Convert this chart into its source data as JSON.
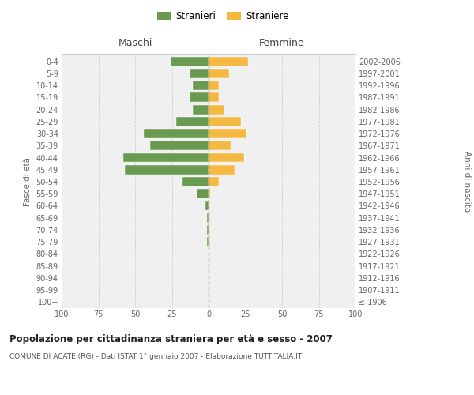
{
  "age_groups": [
    "100+",
    "95-99",
    "90-94",
    "85-89",
    "80-84",
    "75-79",
    "70-74",
    "65-69",
    "60-64",
    "55-59",
    "50-54",
    "45-49",
    "40-44",
    "35-39",
    "30-34",
    "25-29",
    "20-24",
    "15-19",
    "10-14",
    "5-9",
    "0-4"
  ],
  "birth_years": [
    "≤ 1906",
    "1907-1911",
    "1912-1916",
    "1917-1921",
    "1922-1926",
    "1927-1931",
    "1932-1936",
    "1937-1941",
    "1942-1946",
    "1947-1951",
    "1952-1956",
    "1957-1961",
    "1962-1966",
    "1967-1971",
    "1972-1976",
    "1977-1981",
    "1982-1986",
    "1987-1991",
    "1992-1996",
    "1997-2001",
    "2002-2006"
  ],
  "males": [
    0,
    0,
    0,
    0,
    0,
    1,
    1,
    1,
    2,
    8,
    18,
    57,
    58,
    40,
    44,
    22,
    11,
    13,
    11,
    13,
    26
  ],
  "females": [
    0,
    0,
    0,
    0,
    0,
    0,
    0,
    0,
    0,
    1,
    7,
    18,
    24,
    15,
    26,
    22,
    11,
    7,
    7,
    14,
    27
  ],
  "male_color": "#6a9a52",
  "female_color": "#f5b942",
  "center_line_color": "#888844",
  "grid_color": "#cccccc",
  "bg_color": "#f0f0f0",
  "title": "Popolazione per cittadinanza straniera per età e sesso - 2007",
  "subtitle": "COMUNE DI ACATE (RG) - Dati ISTAT 1° gennaio 2007 - Elaborazione TUTTITALIA.IT",
  "xlabel_left": "Maschi",
  "xlabel_right": "Femmine",
  "ylabel_left": "Fasce di età",
  "ylabel_right": "Anni di nascita",
  "legend_stranieri": "Stranieri",
  "legend_straniere": "Straniere",
  "xlim": 100
}
